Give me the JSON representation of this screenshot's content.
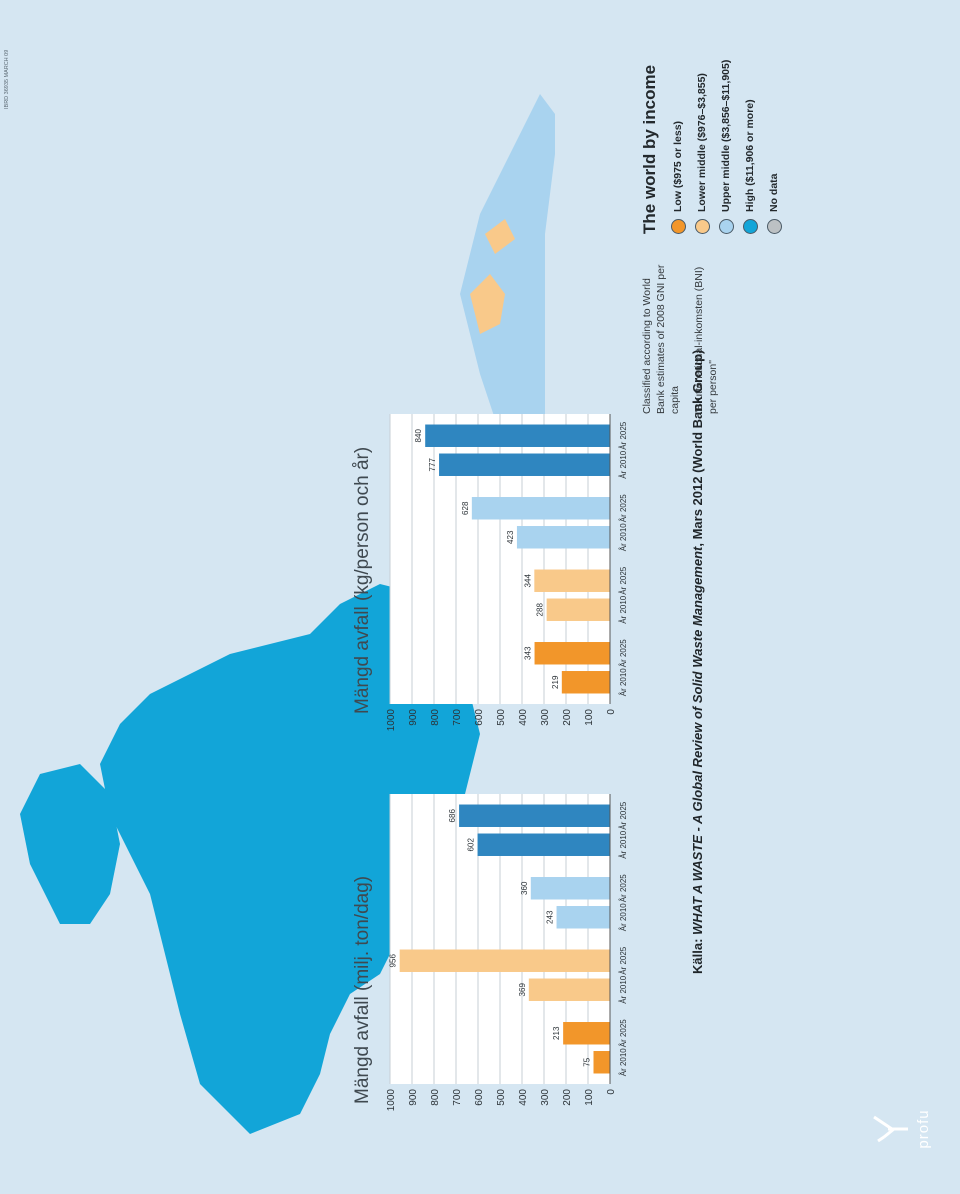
{
  "map": {
    "code": "IBRD 36935 MARCH 09",
    "colors": {
      "low": "#f2962a",
      "lower_middle": "#f9c98a",
      "upper_middle": "#a9d3ef",
      "high": "#12a5d8",
      "no_data": "#bcc1c4",
      "ocean": "#d5e6f2"
    }
  },
  "legend": {
    "title": "The world by income",
    "note_en": "Classified according to World Bank estimates of 2008 GNI per capita",
    "note_sv": "\"Bruttonational-inkomsten (BNI) per person\"",
    "items": [
      {
        "label": "Low ($975 or less)",
        "color": "#f2962a"
      },
      {
        "label": "Lower middle ($976–$3,855)",
        "color": "#f9c98a"
      },
      {
        "label": "Upper middle ($3,856–$11,905)",
        "color": "#a9d3ef"
      },
      {
        "label": "High ($11,906 or more)",
        "color": "#12a5d8"
      },
      {
        "label": "No data",
        "color": "#bcc1c4"
      }
    ]
  },
  "chart_data": [
    {
      "type": "bar",
      "title": "Mängd avfall (milj. ton/dag)",
      "ylim": [
        0,
        1000
      ],
      "ticks": [
        "0",
        "100",
        "200",
        "300",
        "400",
        "500",
        "600",
        "700",
        "800",
        "900",
        "1000"
      ],
      "categories": [
        "År 2010",
        "År 2025",
        "År 2010",
        "År 2025",
        "År 2010",
        "År 2025",
        "År 2010",
        "År 2025"
      ],
      "values": [
        75,
        213,
        369,
        956,
        243,
        360,
        602,
        686
      ],
      "value_labels": [
        "75",
        "213",
        "369",
        "956",
        "243",
        "360",
        "602",
        "686"
      ],
      "colors": [
        "#f2962a",
        "#f2962a",
        "#f9c98a",
        "#f9c98a",
        "#a9d3ef",
        "#a9d3ef",
        "#2f86c0",
        "#2f86c0"
      ]
    },
    {
      "type": "bar",
      "title": "Mängd avfall (kg/person och år)",
      "ylim": [
        0,
        1000
      ],
      "ticks": [
        "0",
        "100",
        "200",
        "300",
        "400",
        "500",
        "600",
        "700",
        "800",
        "900",
        "1000"
      ],
      "categories": [
        "År 2010",
        "År 2025",
        "År 2010",
        "År 2025",
        "År 2010",
        "År 2025",
        "År 2010",
        "År 2025"
      ],
      "values": [
        219,
        343,
        288,
        344,
        423,
        628,
        777,
        840
      ],
      "value_labels": [
        "219",
        "343",
        "288",
        "344",
        "423",
        "628",
        "777",
        "840"
      ],
      "colors": [
        "#f2962a",
        "#f2962a",
        "#f9c98a",
        "#f9c98a",
        "#a9d3ef",
        "#a9d3ef",
        "#2f86c0",
        "#2f86c0"
      ]
    }
  ],
  "source": {
    "prefix": "Källa: ",
    "title": "WHAT A WASTE - A Global Review of Solid Waste Management",
    "suffix": ", Mars 2012 (World Bank Group)"
  },
  "brand": {
    "name": "profu"
  }
}
